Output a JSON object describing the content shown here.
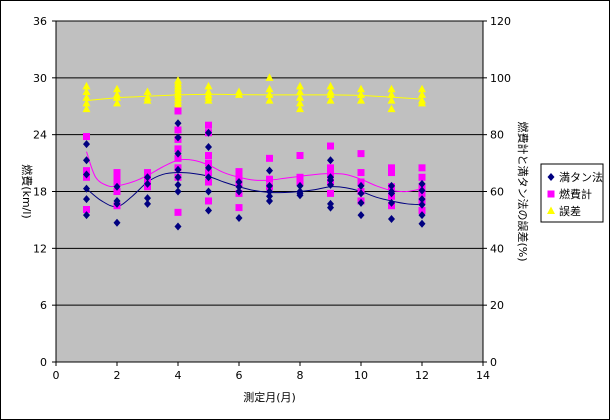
{
  "chart_data": {
    "type": "scatter",
    "title": "",
    "xlabel": "測定月(月)",
    "ylabel_left": "燃費(km/l)",
    "ylabel_right": "燃費計と満タン法の誤差(%)",
    "xlim": [
      0,
      14
    ],
    "x_ticks": [
      "0",
      "2",
      "4",
      "6",
      "8",
      "10",
      "12",
      "14"
    ],
    "ylim_left": [
      0,
      36
    ],
    "y_left_ticks": [
      "0",
      "6",
      "12",
      "18",
      "24",
      "30",
      "36"
    ],
    "ylim_right": [
      0,
      120
    ],
    "y_right_ticks": [
      "0",
      "20",
      "40",
      "60",
      "80",
      "100",
      "120"
    ],
    "grid": true,
    "legend_position": "right",
    "colors": {
      "plot_background": "#c0c0c0",
      "grid": "#000000",
      "manual": "#000080",
      "meter": "#ff00ff",
      "error": "#ffff00"
    },
    "series": [
      {
        "name": "満タン法",
        "axis": "left",
        "marker": "diamond",
        "color": "#000080",
        "points": [
          [
            1,
            15.5
          ],
          [
            1,
            17.2
          ],
          [
            1,
            18.3
          ],
          [
            1,
            19.8
          ],
          [
            1,
            21.3
          ],
          [
            1,
            23.0
          ],
          [
            2,
            14.7
          ],
          [
            2,
            16.7
          ],
          [
            2,
            17.0
          ],
          [
            2,
            18.5
          ],
          [
            3,
            16.7
          ],
          [
            3,
            17.3
          ],
          [
            3,
            18.8
          ],
          [
            3,
            19.5
          ],
          [
            4,
            14.3
          ],
          [
            4,
            18.0
          ],
          [
            4,
            18.7
          ],
          [
            4,
            19.5
          ],
          [
            4,
            20.3
          ],
          [
            4,
            22.0
          ],
          [
            4,
            23.7
          ],
          [
            4,
            25.2
          ],
          [
            5,
            16.0
          ],
          [
            5,
            18.0
          ],
          [
            5,
            19.5
          ],
          [
            5,
            20.5
          ],
          [
            5,
            22.7
          ],
          [
            5,
            24.2
          ],
          [
            6,
            15.2
          ],
          [
            6,
            18.0
          ],
          [
            6,
            18.5
          ],
          [
            6,
            19.0
          ],
          [
            7,
            17.0
          ],
          [
            7,
            17.5
          ],
          [
            7,
            18.0
          ],
          [
            7,
            18.6
          ],
          [
            7,
            20.2
          ],
          [
            8,
            17.6
          ],
          [
            8,
            17.8
          ],
          [
            8,
            18.0
          ],
          [
            8,
            18.6
          ],
          [
            9,
            16.3
          ],
          [
            9,
            16.7
          ],
          [
            9,
            18.7
          ],
          [
            9,
            19.2
          ],
          [
            9,
            19.5
          ],
          [
            9,
            21.3
          ],
          [
            10,
            15.5
          ],
          [
            10,
            16.8
          ],
          [
            10,
            17.8
          ],
          [
            10,
            18.6
          ],
          [
            11,
            15.1
          ],
          [
            11,
            16.8
          ],
          [
            11,
            17.8
          ],
          [
            11,
            18.0
          ],
          [
            11,
            18.6
          ],
          [
            12,
            14.6
          ],
          [
            12,
            15.5
          ],
          [
            12,
            16.6
          ],
          [
            12,
            17.2
          ],
          [
            12,
            18.1
          ],
          [
            12,
            18.8
          ]
        ]
      },
      {
        "name": "燃費計",
        "axis": "left",
        "marker": "square",
        "color": "#ff00ff",
        "points": [
          [
            1,
            16.1
          ],
          [
            1,
            19.5
          ],
          [
            1,
            20.2
          ],
          [
            1,
            23.8
          ],
          [
            2,
            16.5
          ],
          [
            2,
            18.0
          ],
          [
            2,
            19.0
          ],
          [
            2,
            19.5
          ],
          [
            2,
            20.0
          ],
          [
            3,
            18.5
          ],
          [
            3,
            19.0
          ],
          [
            3,
            19.5
          ],
          [
            3,
            20.0
          ],
          [
            4,
            15.8
          ],
          [
            4,
            19.5
          ],
          [
            4,
            20.5
          ],
          [
            4,
            21.5
          ],
          [
            4,
            22.5
          ],
          [
            4,
            23.5
          ],
          [
            4,
            24.5
          ],
          [
            4,
            26.5
          ],
          [
            5,
            17.0
          ],
          [
            5,
            19.0
          ],
          [
            5,
            20.0
          ],
          [
            5,
            21.0
          ],
          [
            5,
            21.8
          ],
          [
            5,
            24.2
          ],
          [
            5,
            25.0
          ],
          [
            6,
            16.3
          ],
          [
            6,
            17.8
          ],
          [
            6,
            18.8
          ],
          [
            6,
            19.5
          ],
          [
            6,
            20.1
          ],
          [
            7,
            18.5
          ],
          [
            7,
            19.3
          ],
          [
            7,
            21.5
          ],
          [
            8,
            19.0
          ],
          [
            8,
            19.5
          ],
          [
            8,
            21.8
          ],
          [
            9,
            17.8
          ],
          [
            9,
            19.0
          ],
          [
            9,
            19.8
          ],
          [
            9,
            20.5
          ],
          [
            9,
            22.8
          ],
          [
            10,
            17.0
          ],
          [
            10,
            18.0
          ],
          [
            10,
            19.0
          ],
          [
            10,
            20.0
          ],
          [
            10,
            22.0
          ],
          [
            11,
            16.5
          ],
          [
            11,
            17.5
          ],
          [
            11,
            18.5
          ],
          [
            11,
            20.0
          ],
          [
            11,
            20.5
          ],
          [
            12,
            16.0
          ],
          [
            12,
            17.0
          ],
          [
            12,
            17.8
          ],
          [
            12,
            18.5
          ],
          [
            12,
            19.5
          ],
          [
            12,
            20.5
          ]
        ]
      },
      {
        "name": "誤差",
        "axis": "right",
        "marker": "triangle",
        "color": "#ffff00",
        "points": [
          [
            1,
            89
          ],
          [
            1,
            91
          ],
          [
            1,
            93
          ],
          [
            1,
            95
          ],
          [
            1,
            97
          ],
          [
            2,
            91
          ],
          [
            2,
            93
          ],
          [
            2,
            94
          ],
          [
            2,
            96
          ],
          [
            3,
            92
          ],
          [
            3,
            93
          ],
          [
            3,
            95
          ],
          [
            4,
            90
          ],
          [
            4,
            91
          ],
          [
            4,
            92
          ],
          [
            4,
            93
          ],
          [
            4,
            94
          ],
          [
            4,
            95
          ],
          [
            4,
            96
          ],
          [
            4,
            97
          ],
          [
            4,
            98
          ],
          [
            4,
            99
          ],
          [
            5,
            92
          ],
          [
            5,
            93
          ],
          [
            5,
            94
          ],
          [
            5,
            95
          ],
          [
            5,
            97
          ],
          [
            6,
            94
          ],
          [
            6,
            95
          ],
          [
            7,
            92
          ],
          [
            7,
            94
          ],
          [
            7,
            96
          ],
          [
            7,
            100
          ],
          [
            8,
            89
          ],
          [
            8,
            91
          ],
          [
            8,
            93
          ],
          [
            8,
            95
          ],
          [
            8,
            97
          ],
          [
            9,
            92
          ],
          [
            9,
            94
          ],
          [
            9,
            95
          ],
          [
            9,
            97
          ],
          [
            10,
            92
          ],
          [
            10,
            94
          ],
          [
            10,
            96
          ],
          [
            11,
            89
          ],
          [
            11,
            92
          ],
          [
            11,
            94
          ],
          [
            11,
            96
          ],
          [
            12,
            91
          ],
          [
            12,
            92
          ],
          [
            12,
            94
          ],
          [
            12,
            96
          ]
        ]
      }
    ],
    "trend_lines": [
      {
        "name": "満タン法",
        "color": "#000080",
        "points": [
          [
            1,
            18.3
          ],
          [
            1.5,
            17.0
          ],
          [
            2,
            16.4
          ],
          [
            2.5,
            17.5
          ],
          [
            3,
            19.0
          ],
          [
            3.5,
            19.8
          ],
          [
            4,
            20.0
          ],
          [
            4.5,
            19.9
          ],
          [
            5,
            19.6
          ],
          [
            5.5,
            19.0
          ],
          [
            6,
            18.5
          ],
          [
            6.5,
            18.1
          ],
          [
            7,
            17.9
          ],
          [
            7.5,
            17.9
          ],
          [
            8,
            18.0
          ],
          [
            8.5,
            18.2
          ],
          [
            9,
            18.5
          ],
          [
            9.5,
            18.4
          ],
          [
            10,
            18.0
          ],
          [
            10.5,
            17.4
          ],
          [
            11,
            17.0
          ],
          [
            11.5,
            16.7
          ],
          [
            12,
            16.6
          ]
        ]
      },
      {
        "name": "燃費計",
        "color": "#ff00ff",
        "points": [
          [
            1,
            22.2
          ],
          [
            1.3,
            19.5
          ],
          [
            1.7,
            18.6
          ],
          [
            2,
            18.6
          ],
          [
            2.5,
            19.0
          ],
          [
            3,
            19.7
          ],
          [
            3.5,
            20.6
          ],
          [
            4,
            21.3
          ],
          [
            4.5,
            21.3
          ],
          [
            5,
            20.8
          ],
          [
            5.5,
            20.0
          ],
          [
            6,
            19.5
          ],
          [
            6.5,
            19.2
          ],
          [
            7,
            19.2
          ],
          [
            7.5,
            19.4
          ],
          [
            8,
            19.6
          ],
          [
            8.5,
            19.8
          ],
          [
            9,
            19.9
          ],
          [
            9.5,
            19.8
          ],
          [
            10,
            19.3
          ],
          [
            10.5,
            18.6
          ],
          [
            11,
            18.1
          ],
          [
            11.5,
            18.0
          ],
          [
            12,
            18.3
          ]
        ]
      },
      {
        "name": "誤差",
        "color": "#ffff00",
        "points": [
          [
            1,
            92.0
          ],
          [
            2,
            93.0
          ],
          [
            3,
            93.5
          ],
          [
            4,
            94.0
          ],
          [
            5,
            94.2
          ],
          [
            6,
            94.1
          ],
          [
            7,
            94.0
          ],
          [
            8,
            94.0
          ],
          [
            9,
            94.0
          ],
          [
            10,
            93.8
          ],
          [
            11,
            93.2
          ],
          [
            12,
            92.5
          ]
        ]
      }
    ]
  }
}
